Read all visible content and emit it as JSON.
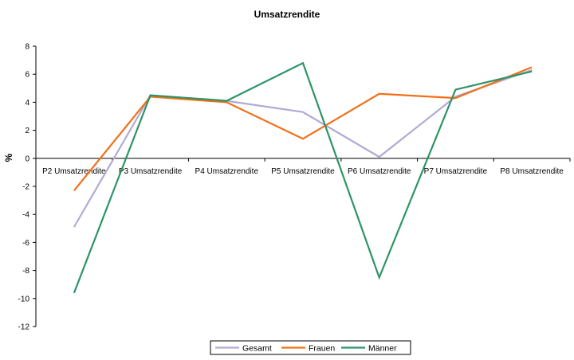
{
  "chart_data": {
    "type": "line",
    "title": "Umsatzrendite",
    "ylabel": "%",
    "xlabel": "",
    "categories": [
      "P2 Umsatzrendite",
      "P3 Umsatzrendite",
      "P4 Umsatzrendite",
      "P5 Umsatzrendite",
      "P6 Umsatzrendite",
      "P7 Umsatzrendite",
      "P8 Umsatzrendite"
    ],
    "ylim": [
      -12,
      8
    ],
    "yticks": [
      -12,
      -10,
      -8,
      -6,
      -4,
      -2,
      0,
      2,
      4,
      6,
      8
    ],
    "grid": false,
    "legend_position": "bottom",
    "series": [
      {
        "name": "Gesamt",
        "color": "#b3a9d6",
        "values": [
          -4.9,
          4.5,
          4.1,
          3.3,
          0.1,
          4.4,
          6.3
        ]
      },
      {
        "name": "Frauen",
        "color": "#f26f16",
        "values": [
          -2.3,
          4.4,
          4.0,
          1.4,
          4.6,
          4.3,
          6.5
        ]
      },
      {
        "name": "Männer",
        "color": "#2e9466",
        "values": [
          -9.6,
          4.5,
          4.1,
          6.8,
          -8.5,
          4.9,
          6.2
        ]
      }
    ]
  }
}
